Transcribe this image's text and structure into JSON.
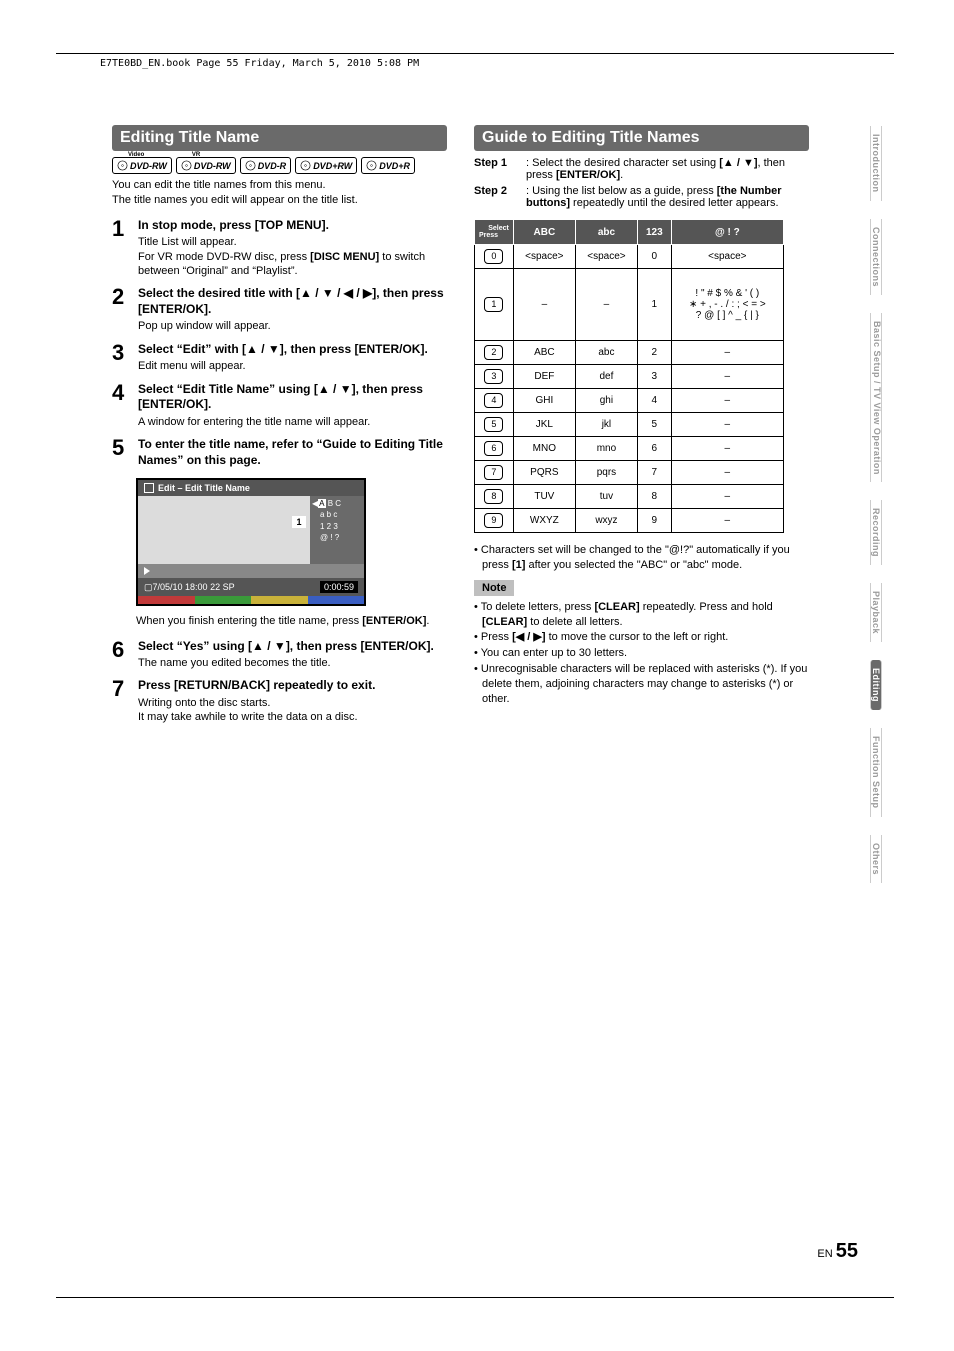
{
  "header_text": "E7TE0BD_EN.book  Page 55  Friday, March 5, 2010  5:08 PM",
  "left": {
    "section_title": "Editing Title Name",
    "formats": [
      "DVD-RW",
      "DVD-RW",
      "DVD-R",
      "DVD+RW",
      "DVD+R"
    ],
    "format_super": [
      "Video",
      "VR",
      "",
      "",
      ""
    ],
    "intro1": "You can edit the title names from this menu.",
    "intro2": "The title names you edit will appear on the title list.",
    "steps": [
      {
        "n": "1",
        "title": "In stop mode, press [TOP MENU].",
        "desc": "Title List will appear.\nFor VR mode DVD-RW disc, press [DISC MENU] to switch between “Original” and “Playlist”."
      },
      {
        "n": "2",
        "title": "Select the desired title with [▲ / ▼ / ◀ / ▶], then press [ENTER/OK].",
        "desc": "Pop up window will appear."
      },
      {
        "n": "3",
        "title": "Select “Edit” with [▲ / ▼], then press [ENTER/OK].",
        "desc": "Edit menu will appear."
      },
      {
        "n": "4",
        "title": "Select “Edit Title Name” using [▲ / ▼], then press [ENTER/OK].",
        "desc": "A window for entering the title name will appear."
      },
      {
        "n": "5",
        "title": "To enter the title name, refer to “Guide to Editing Title Names” on this page.",
        "desc": ""
      }
    ],
    "osd": {
      "title": "Edit – Edit Title Name",
      "box1": "1",
      "set_col": {
        "l1h": "A",
        "l1": " B C",
        "l2": "a  b  c",
        "l3": "1  2  3",
        "l4": "@  !  ?"
      },
      "foot_left": "7/05/10  18:00   22   SP",
      "foot_right": "0:00:59",
      "colors": [
        "#c23a3a",
        "#c23a3a",
        "#3a9a3a",
        "#3a9a3a",
        "#c9b23a",
        "#c9b23a",
        "#3a5ec2",
        "#3a5ec2"
      ]
    },
    "after_osd": "When you finish entering the title name, press [ENTER/OK].",
    "steps2": [
      {
        "n": "6",
        "title": "Select “Yes” using [▲ / ▼], then press [ENTER/OK].",
        "desc": "The name you edited becomes the title."
      },
      {
        "n": "7",
        "title": "Press [RETURN/BACK] repeatedly to exit.",
        "desc": "Writing onto the disc starts.\nIt may take awhile to write the data on a disc."
      }
    ]
  },
  "right": {
    "section_title": "Guide to Editing Title Names",
    "step1_lbl": "Step 1",
    "step1": ": Select the desired character set using [▲ / ▼], then press [ENTER/OK].",
    "step2_lbl": "Step 2",
    "step2": ": Using the list below as a guide, press [the Number buttons] repeatedly until the desired letter appears.",
    "table": {
      "corner_a": "Select",
      "corner_b": "Press",
      "cols": [
        "ABC",
        "abc",
        "123",
        "@ ! ?"
      ],
      "rows": [
        {
          "k": "0",
          "c": [
            "<space>",
            "<space>",
            "0",
            "<space>"
          ]
        },
        {
          "k": "1",
          "c": [
            "–",
            "–",
            "1",
            "! \" # $ % & ' ( )\n∗ + , - . / : ; < = >\n? @ [ ] ^ _ { | }"
          ]
        },
        {
          "k": "2",
          "c": [
            "ABC",
            "abc",
            "2",
            "–"
          ]
        },
        {
          "k": "3",
          "c": [
            "DEF",
            "def",
            "3",
            "–"
          ]
        },
        {
          "k": "4",
          "c": [
            "GHI",
            "ghi",
            "4",
            "–"
          ]
        },
        {
          "k": "5",
          "c": [
            "JKL",
            "jkl",
            "5",
            "–"
          ]
        },
        {
          "k": "6",
          "c": [
            "MNO",
            "mno",
            "6",
            "–"
          ]
        },
        {
          "k": "7",
          "c": [
            "PQRS",
            "pqrs",
            "7",
            "–"
          ]
        },
        {
          "k": "8",
          "c": [
            "TUV",
            "tuv",
            "8",
            "–"
          ]
        },
        {
          "k": "9",
          "c": [
            "WXYZ",
            "wxyz",
            "9",
            "–"
          ]
        }
      ]
    },
    "note_after_table": "Characters set will be changed to the “@!?” automatically if you press [1] after you selected the “ABC” or “abc” mode.",
    "note_label": "Note",
    "notes": [
      "To delete letters, press [CLEAR] repeatedly. Press and hold [CLEAR] to delete all letters.",
      "Press [◀ / ▶] to move the cursor to the left or right.",
      "You can enter up to 30 letters.",
      "Unrecognisable characters will be replaced with asterisks (*). If you delete them, adjoining characters may change to asterisks (*) or other."
    ]
  },
  "tabs": [
    "Introduction",
    "Connections",
    "Basic Setup /\nTV View Operation",
    "Recording",
    "Playback",
    "Editing",
    "Function Setup",
    "Others"
  ],
  "active_tab": 5,
  "page_en": "EN",
  "page_num": "55"
}
